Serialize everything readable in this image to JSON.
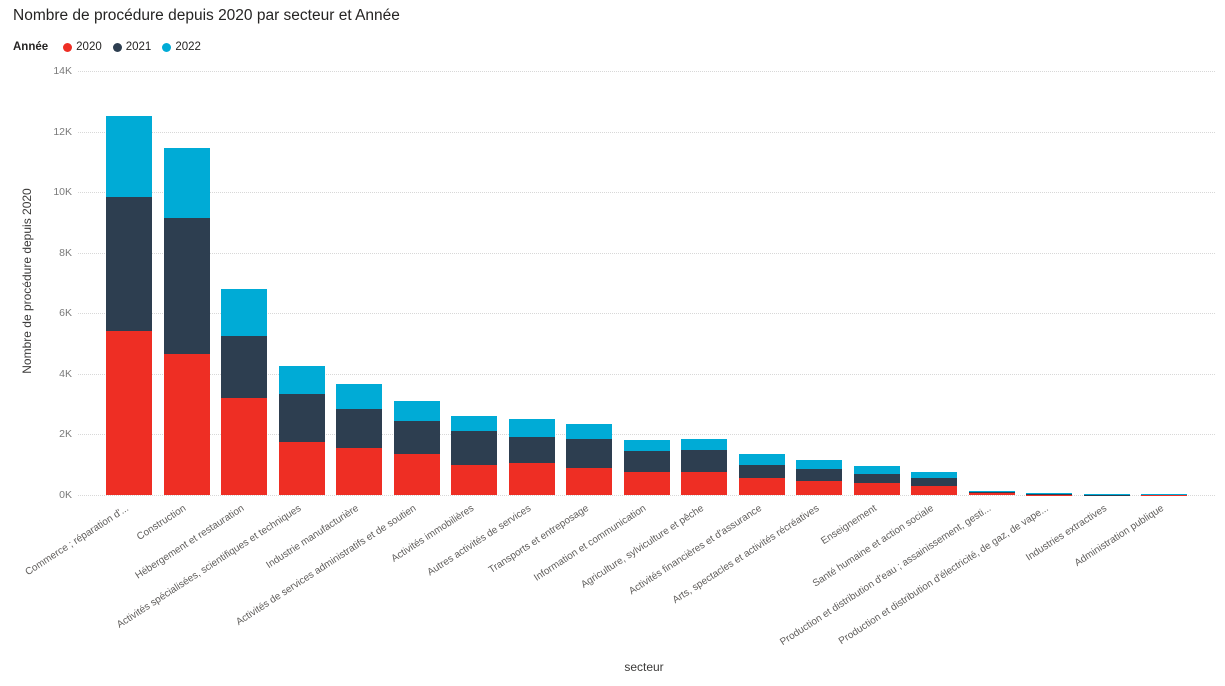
{
  "title": "Nombre de procédure depuis 2020 par secteur et Année",
  "legend": {
    "title": "Année"
  },
  "chart_data": {
    "type": "bar",
    "stacked": true,
    "title": "Nombre de procédure depuis 2020 par secteur et Année",
    "xlabel": "secteur",
    "ylabel": "Nombre de procédure depuis 2020",
    "ylim": [
      0,
      14000
    ],
    "yticks": [
      0,
      2000,
      4000,
      6000,
      8000,
      10000,
      12000,
      14000
    ],
    "ytick_labels": [
      "0K",
      "2K",
      "4K",
      "6K",
      "8K",
      "10K",
      "12K",
      "14K"
    ],
    "grid": "horizontal-dotted",
    "legend_position": "top-left",
    "categories": [
      "Commerce ; réparation d'...",
      "Construction",
      "Hébergement et restauration",
      "Activités spécialisées, scientifiques et techniques",
      "Industrie manufacturière",
      "Activités de services administratifs et de soutien",
      "Activités immobilières",
      "Autres activités de services",
      "Transports et entreposage",
      "Information et communication",
      "Agriculture, sylviculture et pêche",
      "Activités financières et d'assurance",
      "Arts, spectacles et activités récréatives",
      "Enseignement",
      "Santé humaine et action sociale",
      "Production et distribution d'eau ; assainissement, gesti...",
      "Production et distribution d'électricité, de gaz, de vape...",
      "Industries extractives",
      "Administration publique"
    ],
    "series": [
      {
        "name": "2020",
        "color": "#ee2e24",
        "values": [
          5400,
          4650,
          3200,
          1750,
          1550,
          1350,
          1000,
          1050,
          900,
          750,
          750,
          550,
          450,
          400,
          300,
          60,
          10,
          5,
          5
        ]
      },
      {
        "name": "2021",
        "color": "#2d3e50",
        "values": [
          4450,
          4500,
          2050,
          1600,
          1300,
          1100,
          1100,
          850,
          950,
          700,
          750,
          450,
          400,
          300,
          250,
          40,
          45,
          10,
          30
        ]
      },
      {
        "name": "2022",
        "color": "#00abd6",
        "values": [
          2650,
          2300,
          1550,
          900,
          800,
          650,
          500,
          600,
          500,
          350,
          350,
          350,
          300,
          250,
          200,
          30,
          25,
          25,
          5
        ]
      }
    ]
  }
}
